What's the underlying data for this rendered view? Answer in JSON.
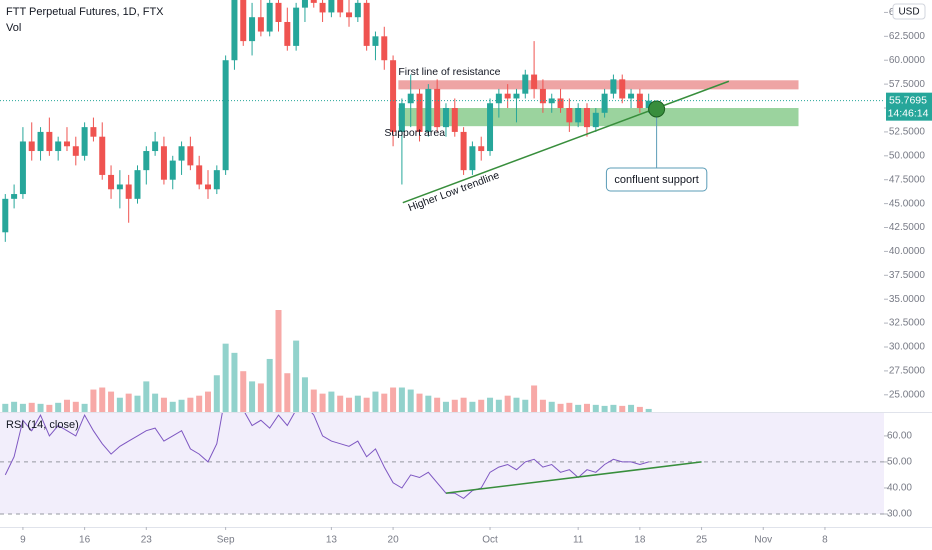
{
  "chart_data": {
    "type": "candlestick",
    "title": "FTT Perpetual Futures, 1D, FTX",
    "currency": "USD",
    "countdown": "14:46:14",
    "up_color": "#26a69a",
    "down_color": "#ef5350",
    "x": [
      -2,
      -1,
      0,
      1,
      2,
      3,
      4,
      5,
      6,
      7,
      8,
      9,
      10,
      11,
      12,
      13,
      14,
      15,
      16,
      17,
      18,
      19,
      20,
      21,
      22,
      23,
      24,
      25,
      26,
      27,
      28,
      29,
      30,
      31,
      32,
      33,
      34,
      35,
      36,
      37,
      38,
      39,
      40,
      41,
      42,
      43,
      44,
      45,
      46,
      47,
      48,
      49,
      50,
      51,
      52,
      53,
      54,
      55,
      56,
      57,
      58,
      59,
      60,
      61,
      62,
      63,
      64,
      65,
      66,
      67,
      68,
      69,
      70,
      71
    ],
    "open": [
      42.0,
      45.5,
      46.0,
      51.5,
      50.5,
      52.5,
      50.5,
      51.5,
      51.0,
      50.0,
      53.0,
      52.0,
      48.0,
      46.5,
      47.0,
      45.5,
      48.5,
      50.5,
      51.0,
      47.5,
      49.5,
      51.0,
      49.0,
      47.0,
      46.5,
      48.5,
      60.0,
      66.5,
      62.0,
      64.5,
      63.0,
      66.0,
      64.0,
      61.5,
      65.5,
      67.0,
      66.0,
      65.0,
      66.5,
      65.0,
      64.5,
      66.0,
      61.5,
      62.5,
      60.0,
      52.5,
      55.5,
      56.5,
      52.5,
      57.0,
      53.0,
      55.0,
      52.5,
      48.5,
      51.0,
      50.5,
      55.5,
      56.5,
      56.0,
      56.5,
      58.5,
      57.0,
      55.5,
      56.0,
      55.0,
      53.5,
      55.0,
      53.0,
      54.5,
      56.5,
      58.0,
      56.0,
      56.5,
      55.0
    ],
    "high": [
      46.0,
      47.0,
      53.0,
      53.5,
      53.0,
      54.0,
      52.0,
      53.0,
      52.0,
      53.5,
      54.0,
      53.5,
      49.0,
      48.5,
      48.0,
      49.0,
      51.0,
      52.5,
      52.0,
      50.0,
      51.5,
      52.0,
      50.0,
      48.5,
      49.0,
      60.5,
      67.0,
      67.5,
      66.0,
      67.0,
      67.5,
      68.0,
      65.5,
      66.0,
      68.0,
      69.0,
      67.0,
      67.5,
      68.0,
      66.5,
      66.5,
      66.5,
      63.0,
      63.5,
      60.5,
      56.0,
      58.5,
      57.0,
      57.5,
      58.0,
      55.5,
      56.0,
      53.0,
      51.5,
      52.0,
      56.0,
      57.0,
      57.5,
      57.0,
      59.0,
      62.0,
      58.0,
      56.5,
      57.0,
      56.0,
      55.5,
      55.5,
      55.0,
      57.0,
      58.5,
      58.5,
      57.0,
      57.0,
      56.5
    ],
    "low": [
      41.0,
      44.5,
      45.5,
      49.5,
      49.5,
      50.0,
      49.5,
      50.5,
      49.0,
      49.5,
      51.5,
      47.5,
      45.5,
      44.5,
      43.0,
      45.0,
      47.0,
      50.0,
      47.0,
      46.5,
      48.0,
      48.5,
      46.5,
      45.5,
      46.0,
      48.0,
      59.0,
      61.5,
      60.5,
      62.5,
      62.5,
      63.0,
      61.0,
      61.0,
      64.0,
      65.5,
      64.0,
      64.5,
      64.5,
      63.5,
      64.0,
      61.0,
      60.0,
      59.0,
      51.0,
      47.0,
      53.0,
      51.5,
      52.0,
      52.5,
      52.0,
      52.0,
      48.0,
      48.0,
      49.5,
      50.0,
      54.0,
      55.0,
      53.5,
      56.0,
      56.0,
      54.5,
      54.5,
      54.5,
      52.5,
      53.0,
      52.0,
      52.5,
      54.0,
      56.0,
      55.5,
      55.0,
      54.5,
      54.5
    ],
    "close": [
      45.5,
      46.0,
      51.5,
      50.5,
      52.5,
      50.5,
      51.5,
      51.0,
      50.0,
      53.0,
      52.0,
      48.0,
      46.5,
      47.0,
      45.5,
      48.5,
      50.5,
      51.5,
      47.5,
      49.5,
      51.0,
      49.0,
      47.0,
      46.5,
      48.5,
      60.0,
      66.5,
      62.0,
      64.5,
      63.0,
      66.0,
      64.0,
      61.5,
      65.5,
      67.0,
      66.0,
      65.0,
      66.5,
      65.0,
      64.5,
      66.0,
      61.5,
      62.5,
      60.0,
      52.5,
      55.5,
      56.5,
      52.5,
      57.0,
      53.0,
      55.0,
      52.5,
      48.5,
      51.0,
      50.5,
      55.5,
      56.5,
      56.0,
      56.5,
      58.5,
      57.0,
      55.5,
      56.0,
      55.0,
      53.5,
      55.0,
      53.0,
      54.5,
      56.5,
      58.0,
      56.0,
      56.5,
      55.0,
      55.7695
    ],
    "xlim": [
      -2.6,
      97.7
    ],
    "xticks": [
      {
        "value": 0,
        "label": "9"
      },
      {
        "value": 7,
        "label": "16"
      },
      {
        "value": 14,
        "label": "23"
      },
      {
        "value": 23,
        "label": "Sep"
      },
      {
        "value": 35,
        "label": "13"
      },
      {
        "value": 42,
        "label": "20"
      },
      {
        "value": 53,
        "label": "Oct"
      },
      {
        "value": 63,
        "label": "11"
      },
      {
        "value": 70,
        "label": "18"
      },
      {
        "value": 77,
        "label": "25"
      },
      {
        "value": 84,
        "label": "Nov"
      },
      {
        "value": 91,
        "label": "8"
      }
    ],
    "ylim": [
      23.2,
      66.3
    ],
    "yticks": [
      {
        "value": 65,
        "label": "65.0000"
      },
      {
        "value": 62.5,
        "label": "62.5000"
      },
      {
        "value": 60,
        "label": "60.0000"
      },
      {
        "value": 57.5,
        "label": "57.5000"
      },
      {
        "value": 55,
        "label": "55.0000"
      },
      {
        "value": 52.5,
        "label": "52.5000"
      },
      {
        "value": 50,
        "label": "50.0000"
      },
      {
        "value": 47.5,
        "label": "47.5000"
      },
      {
        "value": 45,
        "label": "45.0000"
      },
      {
        "value": 42.5,
        "label": "42.5000"
      },
      {
        "value": 40,
        "label": "40.0000"
      },
      {
        "value": 37.5,
        "label": "37.5000"
      },
      {
        "value": 35,
        "label": "35.0000"
      },
      {
        "value": 32.5,
        "label": "32.5000"
      },
      {
        "value": 30,
        "label": "30.0000"
      },
      {
        "value": 27.5,
        "label": "27.5000"
      },
      {
        "value": 25,
        "label": "25.0000"
      }
    ],
    "volume": {
      "label": "Vol",
      "values": [
        8,
        10,
        8,
        9,
        8,
        7,
        9,
        12,
        10,
        8,
        22,
        24,
        20,
        14,
        18,
        16,
        30,
        18,
        14,
        10,
        12,
        14,
        16,
        20,
        36,
        67,
        58,
        40,
        30,
        28,
        52,
        100,
        38,
        70,
        34,
        22,
        18,
        20,
        16,
        14,
        16,
        14,
        20,
        18,
        24,
        24,
        22,
        18,
        16,
        14,
        10,
        12,
        14,
        10,
        12,
        14,
        12,
        16,
        14,
        12,
        26,
        12,
        10,
        8,
        9,
        7,
        8,
        7,
        6,
        7,
        6,
        7,
        5,
        3
      ]
    },
    "rsi": {
      "label": "RSI (14, close)",
      "color": "#7e57c2",
      "band_color": "#f2eefb",
      "values": [
        45,
        52,
        66,
        62,
        68,
        60,
        64,
        62,
        60,
        68,
        62,
        57,
        53,
        56,
        58,
        60,
        62,
        63,
        58,
        60,
        62,
        55,
        53,
        50,
        57,
        76,
        80,
        70,
        64,
        66,
        63,
        68,
        64,
        70,
        72,
        68,
        60,
        58,
        57,
        56,
        58,
        52,
        55,
        48,
        42,
        40,
        45,
        44,
        46,
        42,
        38,
        38,
        36,
        39,
        40,
        46,
        48,
        49,
        47,
        50,
        51,
        48,
        49,
        46,
        47,
        44,
        47,
        46,
        49,
        51,
        50,
        50,
        49,
        50
      ],
      "ylim": [
        25,
        68.8
      ],
      "yticks": [
        {
          "value": 60,
          "label": "60.00"
        },
        {
          "value": 50,
          "label": "50.00"
        },
        {
          "value": 40,
          "label": "40.00"
        },
        {
          "value": 30,
          "label": "30.00"
        }
      ],
      "levels": [
        50,
        30
      ],
      "trendline": {
        "x": [
          48,
          77
        ],
        "y": [
          38,
          50
        ],
        "color": "#388e3c"
      }
    },
    "annotations": {
      "resistance_zone": {
        "label": "First line of resistance",
        "x": [
          42.6,
          88
        ],
        "y": [
          56.95,
          57.9
        ],
        "color": "#e57373"
      },
      "support_zone": {
        "label": "Support area",
        "x": [
          42.6,
          88
        ],
        "y": [
          53.1,
          55.0
        ],
        "color": "#66bb6a"
      },
      "trendline": {
        "label": "Higher Low trendline",
        "x": [
          43.1,
          80.1
        ],
        "y": [
          45.1,
          57.8
        ],
        "color": "#388e3c"
      },
      "callout": {
        "label": "confluent support",
        "x": 71.9,
        "y": 54.9,
        "color": "#388e3c"
      }
    }
  }
}
